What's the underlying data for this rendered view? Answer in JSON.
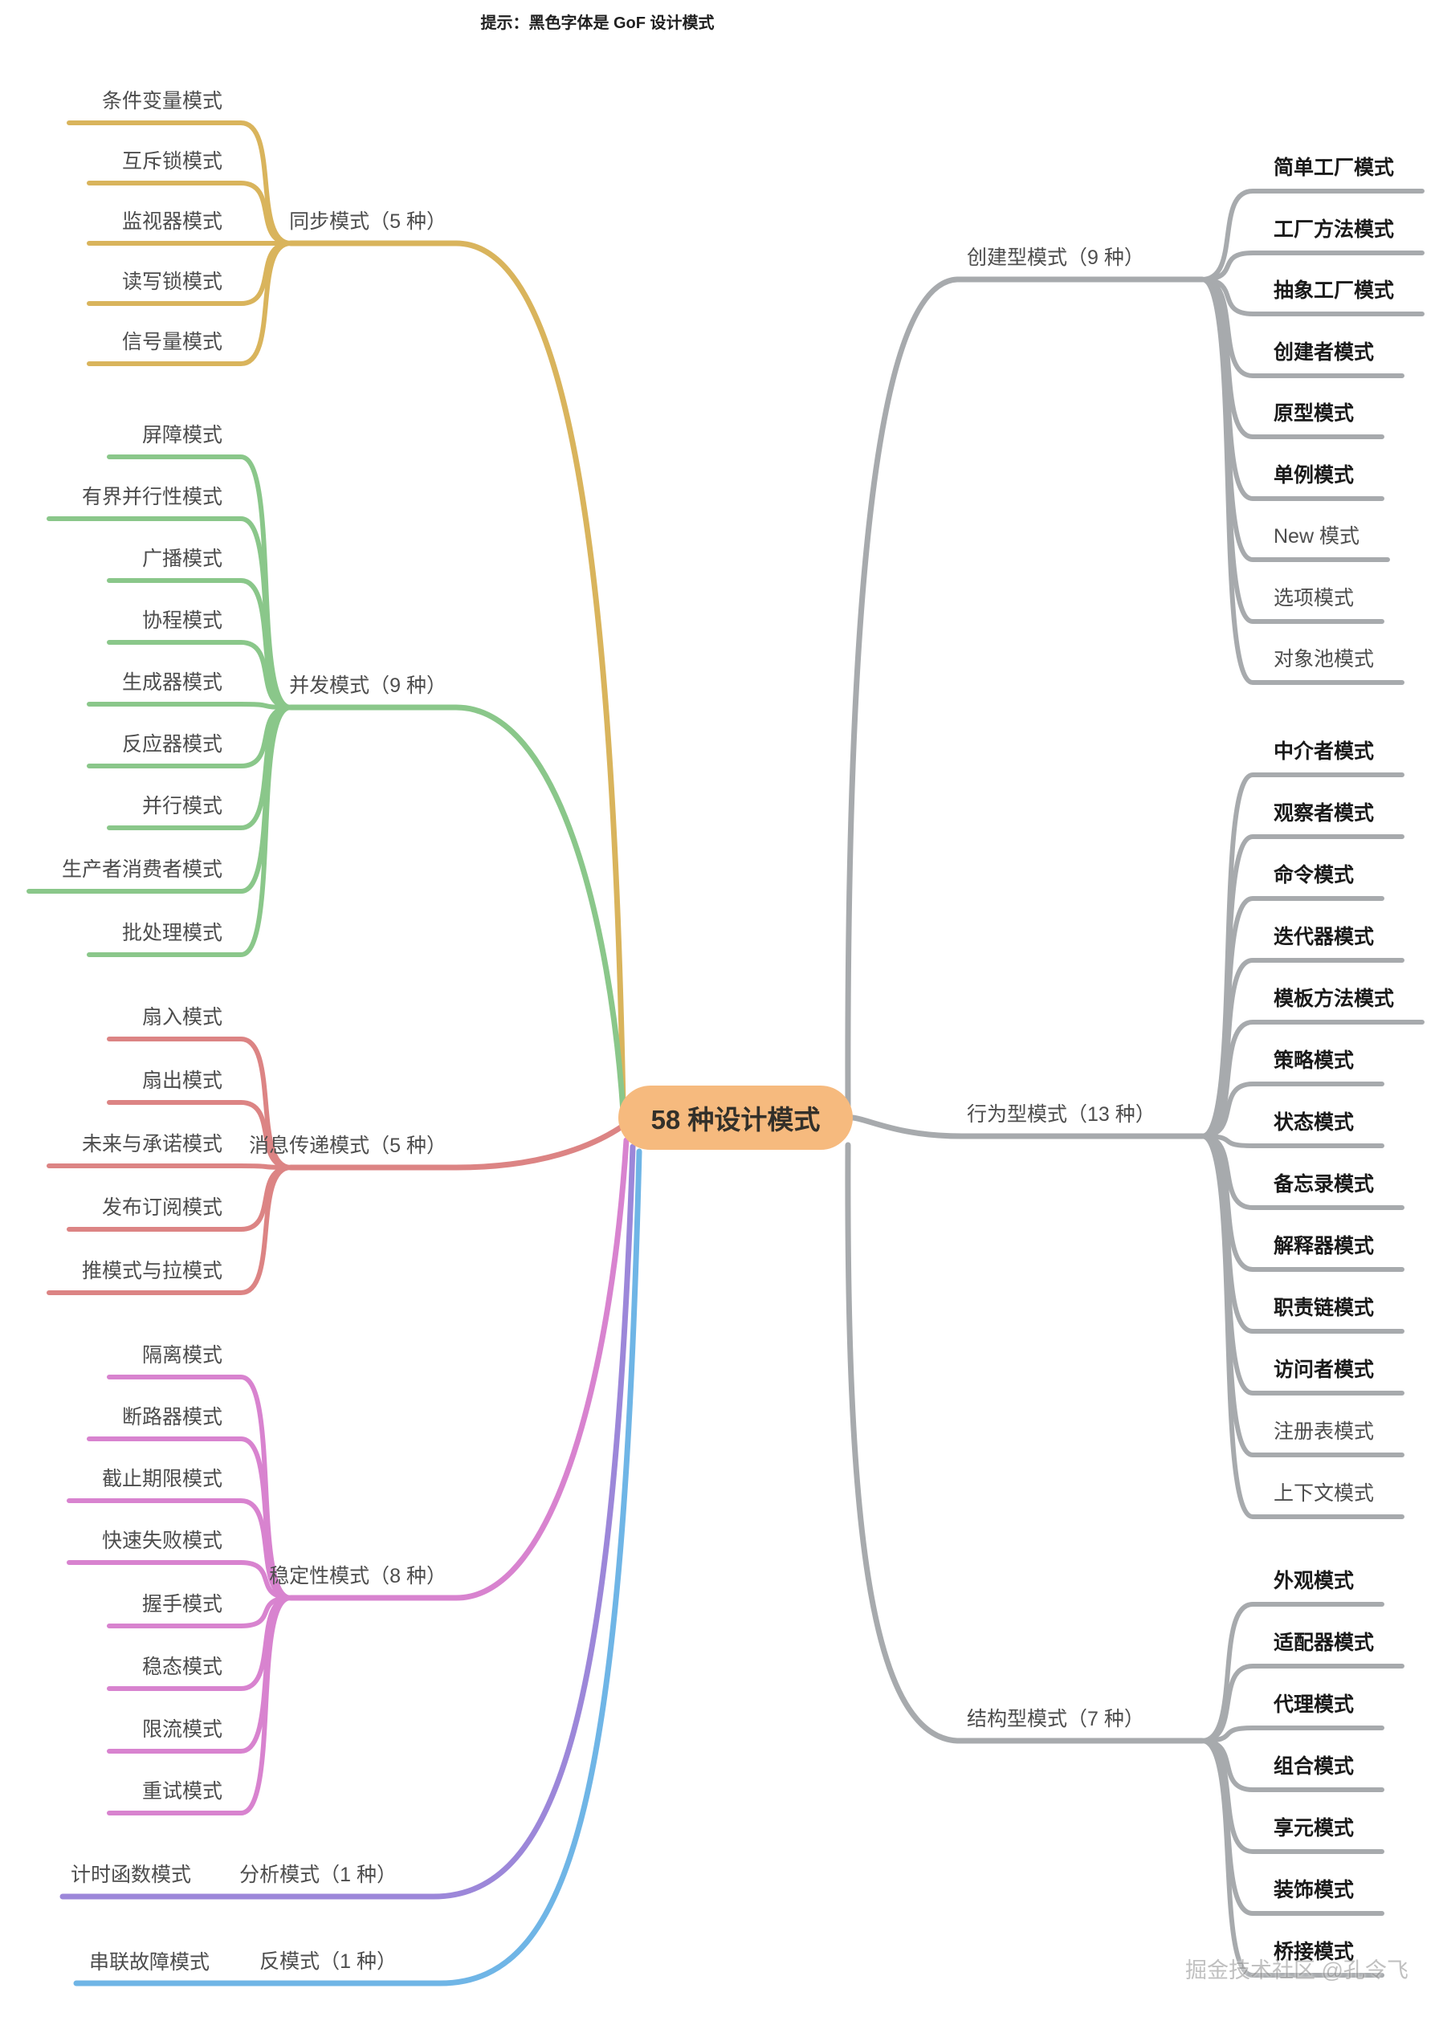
{
  "title": "提示：黑色字体是 GoF 设计模式",
  "center": {
    "label": "58 种设计模式",
    "color": "#F6BA7E"
  },
  "watermark": "掘金技术社区 @孔令飞",
  "branches": [
    {
      "label": "同步模式（5 种）",
      "color": "#D9B45C",
      "side": "left",
      "items": [
        {
          "label": "条件变量模式"
        },
        {
          "label": "互斥锁模式"
        },
        {
          "label": "监视器模式"
        },
        {
          "label": "读写锁模式"
        },
        {
          "label": "信号量模式"
        }
      ]
    },
    {
      "label": "并发模式（9 种）",
      "color": "#8AC78A",
      "side": "left",
      "items": [
        {
          "label": "屏障模式"
        },
        {
          "label": "有界并行性模式"
        },
        {
          "label": "广播模式"
        },
        {
          "label": "协程模式"
        },
        {
          "label": "生成器模式"
        },
        {
          "label": "反应器模式"
        },
        {
          "label": "并行模式"
        },
        {
          "label": "生产者消费者模式"
        },
        {
          "label": "批处理模式"
        }
      ]
    },
    {
      "label": "消息传递模式（5 种）",
      "color": "#DC8484",
      "side": "left",
      "items": [
        {
          "label": "扇入模式"
        },
        {
          "label": "扇出模式"
        },
        {
          "label": "未来与承诺模式"
        },
        {
          "label": "发布订阅模式"
        },
        {
          "label": "推模式与拉模式"
        }
      ]
    },
    {
      "label": "稳定性模式（8 种）",
      "color": "#D883CF",
      "side": "left",
      "items": [
        {
          "label": "隔离模式"
        },
        {
          "label": "断路器模式"
        },
        {
          "label": "截止期限模式"
        },
        {
          "label": "快速失败模式"
        },
        {
          "label": "握手模式"
        },
        {
          "label": "稳态模式"
        },
        {
          "label": "限流模式"
        },
        {
          "label": "重试模式"
        }
      ]
    },
    {
      "label": "分析模式（1 种）",
      "color": "#9C87D9",
      "side": "left",
      "items": [
        {
          "label": "计时函数模式"
        }
      ]
    },
    {
      "label": "反模式（1 种）",
      "color": "#6FB5E6",
      "side": "left",
      "items": [
        {
          "label": "串联故障模式"
        }
      ]
    },
    {
      "label": "创建型模式（9 种）",
      "color": "#A7AAAD",
      "side": "right",
      "items": [
        {
          "label": "简单工厂模式",
          "gof": true
        },
        {
          "label": "工厂方法模式",
          "gof": true
        },
        {
          "label": "抽象工厂模式",
          "gof": true
        },
        {
          "label": "创建者模式",
          "gof": true
        },
        {
          "label": "原型模式",
          "gof": true
        },
        {
          "label": "单例模式",
          "gof": true
        },
        {
          "label": "New 模式",
          "gof": false
        },
        {
          "label": "选项模式",
          "gof": false
        },
        {
          "label": "对象池模式",
          "gof": false
        }
      ]
    },
    {
      "label": "行为型模式（13 种）",
      "color": "#A7AAAD",
      "side": "right",
      "items": [
        {
          "label": "中介者模式",
          "gof": true
        },
        {
          "label": "观察者模式",
          "gof": true
        },
        {
          "label": "命令模式",
          "gof": true
        },
        {
          "label": "迭代器模式",
          "gof": true
        },
        {
          "label": "模板方法模式",
          "gof": true
        },
        {
          "label": "策略模式",
          "gof": true
        },
        {
          "label": "状态模式",
          "gof": true
        },
        {
          "label": "备忘录模式",
          "gof": true
        },
        {
          "label": "解释器模式",
          "gof": true
        },
        {
          "label": "职责链模式",
          "gof": true
        },
        {
          "label": "访问者模式",
          "gof": true
        },
        {
          "label": "注册表模式",
          "gof": false
        },
        {
          "label": "上下文模式",
          "gof": false
        }
      ]
    },
    {
      "label": "结构型模式（7 种）",
      "color": "#A7AAAD",
      "side": "right",
      "items": [
        {
          "label": "外观模式",
          "gof": true
        },
        {
          "label": "适配器模式",
          "gof": true
        },
        {
          "label": "代理模式",
          "gof": true
        },
        {
          "label": "组合模式",
          "gof": true
        },
        {
          "label": "享元模式",
          "gof": true
        },
        {
          "label": "装饰模式",
          "gof": true
        },
        {
          "label": "桥接模式",
          "gof": true
        }
      ]
    }
  ]
}
